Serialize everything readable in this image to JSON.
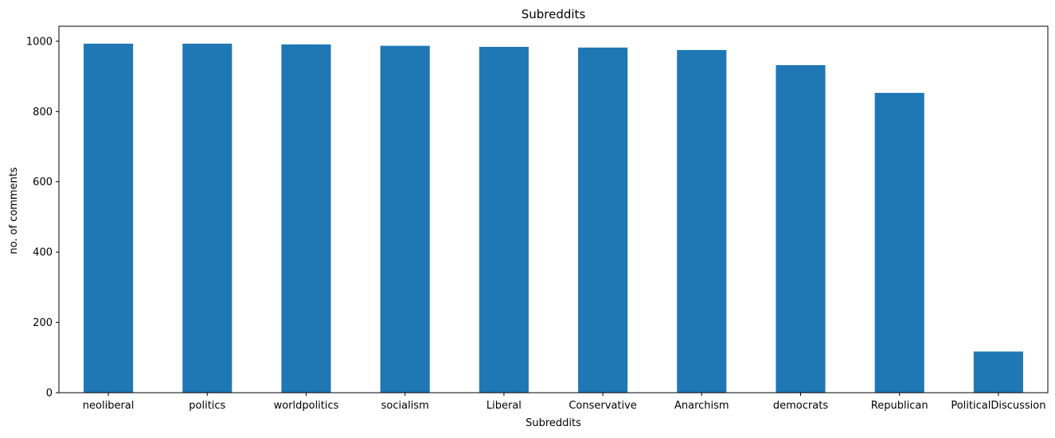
{
  "chart_data": {
    "type": "bar",
    "title": "Subreddits",
    "xlabel": "Subreddits",
    "ylabel": "no. of comments",
    "categories": [
      "neoliberal",
      "politics",
      "worldpolitics",
      "socialism",
      "Liberal",
      "Conservative",
      "Anarchism",
      "democrats",
      "Republican",
      "PoliticalDiscussion"
    ],
    "values": [
      993,
      993,
      991,
      987,
      984,
      982,
      975,
      932,
      853,
      117
    ],
    "ylim": [
      0,
      1042.65
    ],
    "yticks": [
      0,
      200,
      400,
      600,
      800,
      1000
    ],
    "grid": false,
    "legend": "none",
    "bar_color": "#1f77b4"
  }
}
